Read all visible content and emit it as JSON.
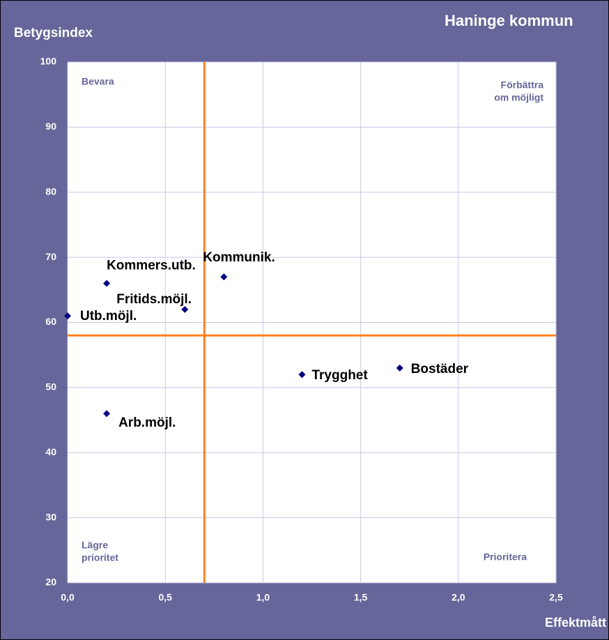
{
  "chart_data": {
    "type": "scatter",
    "title": "Haninge kommun",
    "ylabel": "Betygsindex",
    "xlabel": "Effektmått",
    "labels": [
      "Utb.möjl.",
      "Kommers.utb.",
      "Fritids.möjl.",
      "Kommunik.",
      "Arb.möjl.",
      "Trygghet",
      "Bostäder"
    ],
    "x": [
      0.0,
      0.2,
      0.6,
      0.8,
      0.2,
      1.2,
      1.7
    ],
    "values": [
      61,
      66,
      62,
      67,
      46,
      52,
      53
    ],
    "color": "#000080",
    "xlim": [
      0,
      2.5
    ],
    "ylim": [
      20,
      100
    ],
    "xticks": [
      {
        "value": 0,
        "label": "0,0"
      },
      {
        "value": 0.5,
        "label": "0,5"
      },
      {
        "value": 1,
        "label": "1,0"
      },
      {
        "value": 1.5,
        "label": "1,5"
      },
      {
        "value": 2,
        "label": "2,0"
      },
      {
        "value": 2.5,
        "label": "2,5"
      }
    ],
    "yticks": [
      20,
      30,
      40,
      50,
      60,
      70,
      80,
      90,
      100
    ],
    "grid": true,
    "quadrant_lines": {
      "x": 0.7,
      "y": 58,
      "color": "#ff7f1e"
    },
    "quadrants": {
      "top_left": "Bevara",
      "top_right": [
        "Förbättra",
        "om möjligt"
      ],
      "bottom_left": [
        "Lägre",
        "prioritet"
      ],
      "bottom_right": "Prioritera"
    }
  }
}
